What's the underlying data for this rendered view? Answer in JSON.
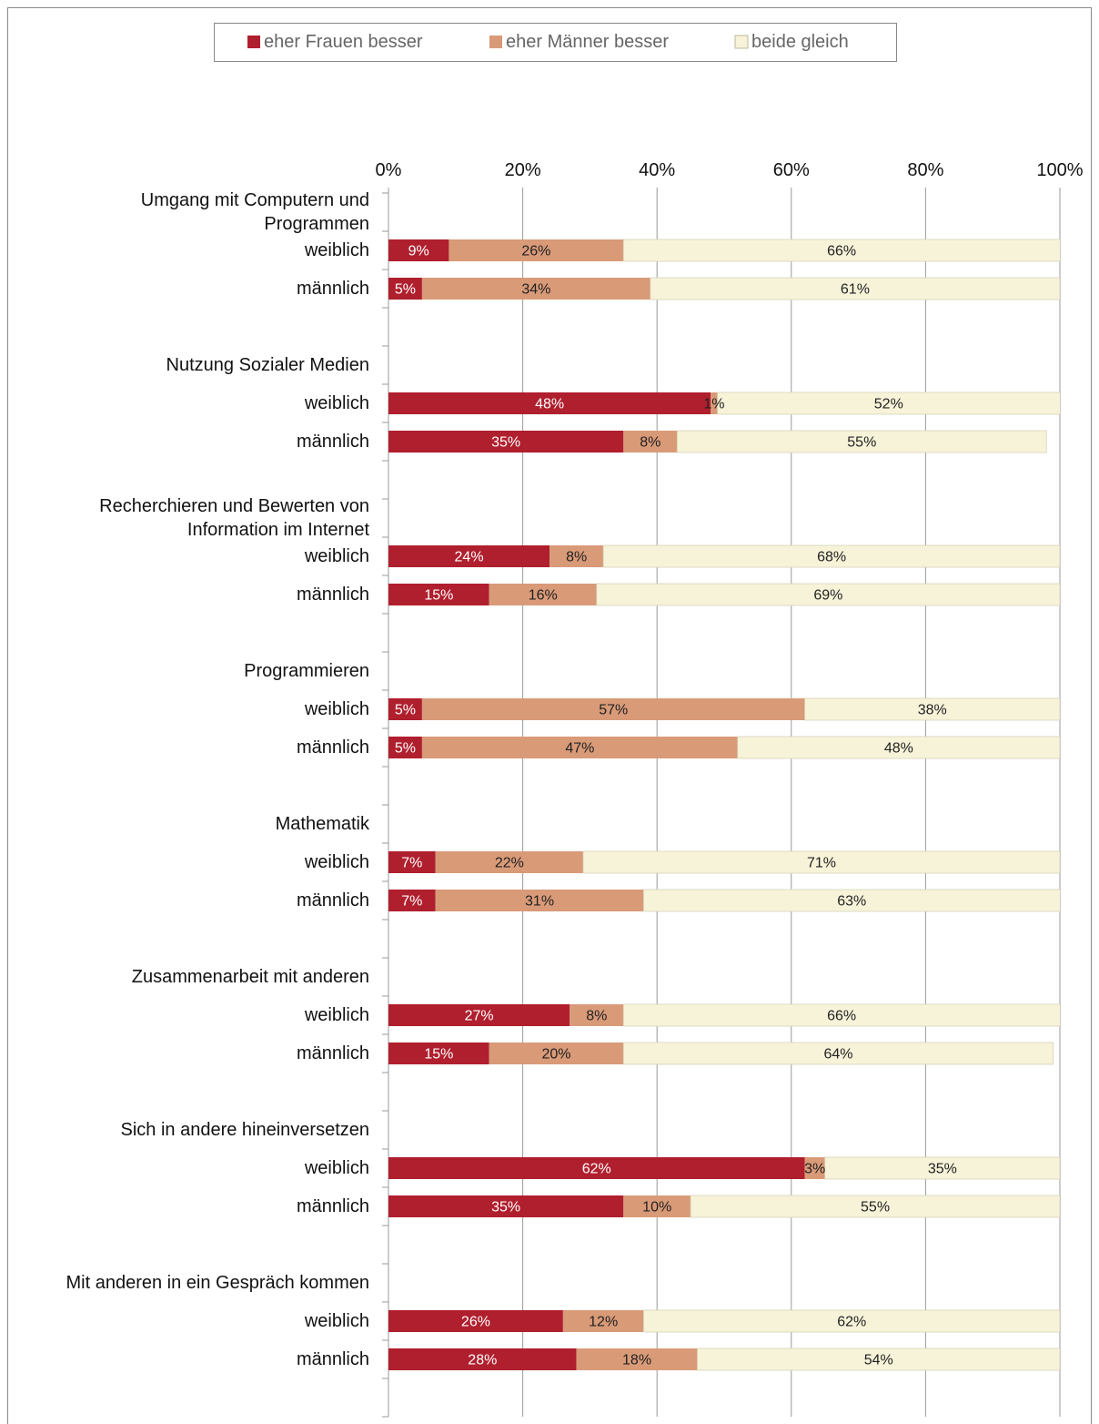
{
  "chart_data": {
    "type": "stacked-barh",
    "legend": "top",
    "grid": true,
    "xlim": [
      0,
      100
    ],
    "xticks": [
      {
        "value": 0,
        "label": "0%"
      },
      {
        "value": 20,
        "label": "20%"
      },
      {
        "value": 40,
        "label": "40%"
      },
      {
        "value": 60,
        "label": "60%"
      },
      {
        "value": 80,
        "label": "80%"
      },
      {
        "value": 100,
        "label": "100%"
      }
    ],
    "categories": [
      "Umgang mit Computern und Programmen",
      "weiblich",
      "männlich",
      null,
      "Nutzung Sozialer Medien",
      "weiblich",
      "männlich",
      null,
      "Recherchieren und Bewerten von Information im Internet",
      "weiblich",
      "männlich",
      null,
      "Programmieren",
      "weiblich",
      "männlich",
      null,
      "Mathematik",
      "weiblich",
      "männlich",
      null,
      "Zusammenarbeit mit anderen",
      "weiblich",
      "männlich",
      null,
      "Sich in andere hineinversetzen",
      "weiblich",
      "männlich",
      null,
      "Mit anderen in ein Gespräch kommen",
      "weiblich",
      "männlich",
      null
    ],
    "series": [
      {
        "name": "eher Frauen besser",
        "color": "#b01f2e",
        "label_color": "#ffffff",
        "values": [
          null,
          9,
          5,
          null,
          null,
          48,
          35,
          null,
          null,
          24,
          15,
          null,
          null,
          5,
          5,
          null,
          null,
          7,
          7,
          null,
          null,
          27,
          15,
          null,
          null,
          62,
          35,
          null,
          null,
          26,
          28,
          null
        ],
        "value_labels": [
          null,
          "9%",
          "5%",
          null,
          null,
          "48%",
          "35%",
          null,
          null,
          "24%",
          "15%",
          null,
          null,
          "5%",
          "5%",
          null,
          null,
          "7%",
          "7%",
          null,
          null,
          "27%",
          "15%",
          null,
          null,
          "62%",
          "35%",
          null,
          null,
          "26%",
          "28%",
          null
        ]
      },
      {
        "name": "eher Männer besser",
        "color": "#d99a78",
        "label_color": "#222222",
        "values": [
          null,
          26,
          34,
          null,
          null,
          1,
          8,
          null,
          null,
          8,
          16,
          null,
          null,
          57,
          47,
          null,
          null,
          22,
          31,
          null,
          null,
          8,
          20,
          null,
          null,
          3,
          10,
          null,
          null,
          12,
          18,
          null
        ],
        "value_labels": [
          null,
          "26%",
          "34%",
          null,
          null,
          "1%",
          "8%",
          null,
          null,
          "8%",
          "16%",
          null,
          null,
          "57%",
          "47%",
          null,
          null,
          "22%",
          "31%",
          null,
          null,
          "8%",
          "20%",
          null,
          null,
          "3%",
          "10%",
          null,
          null,
          "12%",
          "18%",
          null
        ]
      },
      {
        "name": "beide gleich",
        "color": "#f7f3d9",
        "label_color": "#222222",
        "values": [
          null,
          66,
          61,
          null,
          null,
          52,
          55,
          null,
          null,
          68,
          69,
          null,
          null,
          38,
          48,
          null,
          null,
          71,
          63,
          null,
          null,
          66,
          64,
          null,
          null,
          35,
          55,
          null,
          null,
          62,
          54,
          null
        ],
        "value_labels": [
          null,
          "66%",
          "61%",
          null,
          null,
          "52%",
          "55%",
          null,
          null,
          "68%",
          "69%",
          null,
          null,
          "38%",
          "48%",
          null,
          null,
          "71%",
          "63%",
          null,
          null,
          "66%",
          "64%",
          null,
          null,
          "35%",
          "55%",
          null,
          null,
          "62%",
          "54%",
          null
        ]
      }
    ]
  }
}
